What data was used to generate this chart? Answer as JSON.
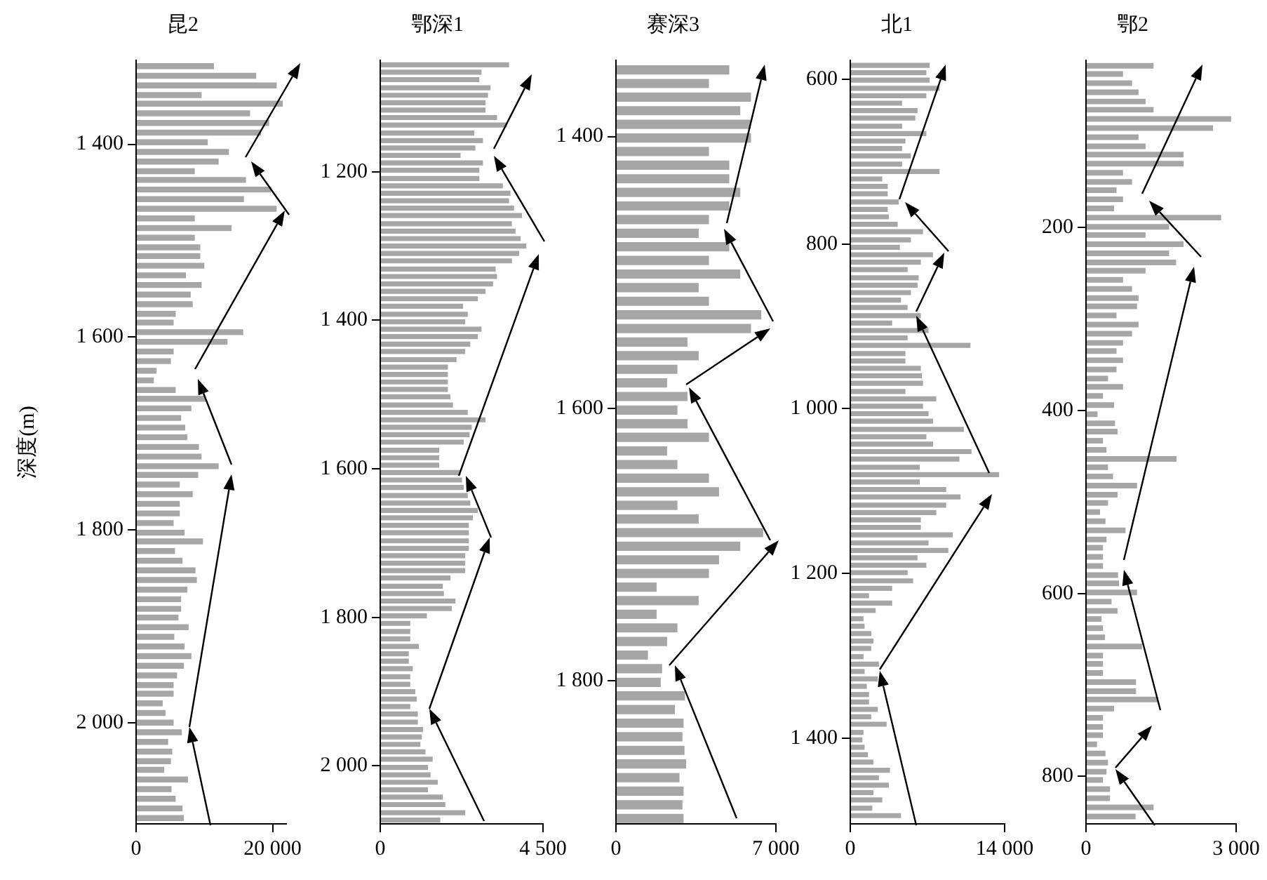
{
  "chart_data": [
    {
      "type": "bar",
      "orientation": "horizontal",
      "title": "昆2",
      "ylabel": "深度(m)",
      "color": "#a6a6a6",
      "xlim": [
        0,
        22000
      ],
      "xticks": [
        {
          "value": 0,
          "label": "0"
        },
        {
          "value": 20000,
          "label": "20 000"
        }
      ],
      "ylim": [
        2105,
        1313
      ],
      "yticks": [
        {
          "value": 1400,
          "label": "1 400"
        },
        {
          "value": 1600,
          "label": "1 600"
        },
        {
          "value": 1800,
          "label": "1 800"
        },
        {
          "value": 2000,
          "label": "2 000"
        }
      ],
      "x": [
        1319,
        1329,
        1339,
        1349,
        1358,
        1368,
        1378,
        1388,
        1398,
        1408,
        1418,
        1428,
        1437,
        1447,
        1457,
        1467,
        1477,
        1487,
        1497,
        1507,
        1516,
        1526,
        1536,
        1546,
        1556,
        1566,
        1576,
        1585,
        1595,
        1605,
        1615,
        1625,
        1635,
        1645,
        1655,
        1664,
        1674,
        1684,
        1694,
        1704,
        1714,
        1724,
        1734,
        1743,
        1753,
        1763,
        1773,
        1783,
        1793,
        1803,
        1812,
        1822,
        1832,
        1842,
        1852,
        1862,
        1872,
        1882,
        1891,
        1901,
        1911,
        1921,
        1931,
        1941,
        1951,
        1961,
        1970,
        1980,
        1990,
        2000,
        2010,
        2020,
        2030,
        2040,
        2049,
        2059,
        2069,
        2079,
        2089,
        2099
      ],
      "values": [
        11400,
        17600,
        20600,
        9600,
        21500,
        16700,
        19500,
        18300,
        10500,
        13600,
        12100,
        8600,
        16100,
        19800,
        15800,
        20600,
        8600,
        14000,
        8600,
        9400,
        9400,
        10000,
        7300,
        9600,
        8000,
        8300,
        5800,
        5500,
        15700,
        13400,
        5500,
        5100,
        3000,
        2600,
        5800,
        10200,
        8100,
        6600,
        7200,
        7500,
        9200,
        9600,
        12100,
        9100,
        6400,
        8300,
        6400,
        6400,
        5500,
        7100,
        9800,
        5700,
        6800,
        8700,
        8900,
        7500,
        6600,
        6600,
        6200,
        7700,
        5600,
        7100,
        8100,
        7000,
        6000,
        5500,
        5500,
        3900,
        4300,
        5500,
        6700,
        4700,
        5300,
        5100,
        4100,
        7600,
        5200,
        5800,
        6800,
        7000
      ]
    },
    {
      "type": "bar",
      "orientation": "horizontal",
      "title": "鄂深1",
      "color": "#a6a6a6",
      "xlim": [
        0,
        4500
      ],
      "xticks": [
        {
          "value": 0,
          "label": "0"
        },
        {
          "value": 4500,
          "label": "4 500"
        }
      ],
      "ylim": [
        2078,
        1050
      ],
      "yticks": [
        {
          "value": 1200,
          "label": "1 200"
        },
        {
          "value": 1400,
          "label": "1 400"
        },
        {
          "value": 1600,
          "label": "1 600"
        },
        {
          "value": 1800,
          "label": "1 800"
        },
        {
          "value": 2000,
          "label": "2 000"
        }
      ],
      "x": [
        1056,
        1066,
        1076,
        1087,
        1097,
        1107,
        1117,
        1127,
        1137,
        1148,
        1158,
        1168,
        1178,
        1188,
        1198,
        1209,
        1219,
        1229,
        1239,
        1249,
        1259,
        1270,
        1280,
        1290,
        1300,
        1310,
        1320,
        1331,
        1341,
        1351,
        1361,
        1371,
        1381,
        1392,
        1402,
        1412,
        1422,
        1432,
        1442,
        1453,
        1463,
        1473,
        1483,
        1493,
        1503,
        1514,
        1524,
        1534,
        1544,
        1554,
        1564,
        1575,
        1585,
        1595,
        1605,
        1615,
        1625,
        1636,
        1646,
        1656,
        1666,
        1676,
        1686,
        1697,
        1707,
        1717,
        1727,
        1737,
        1747,
        1758,
        1768,
        1778,
        1788,
        1798,
        1808,
        1819,
        1829,
        1839,
        1849,
        1859,
        1869,
        1880,
        1890,
        1900,
        1910,
        1920,
        1930,
        1941,
        1951,
        1961,
        1971,
        1981,
        1991,
        2002,
        2012,
        2022,
        2032,
        2042,
        2052,
        2063,
        2073
      ],
      "values": [
        3560,
        2800,
        2740,
        3050,
        2980,
        2910,
        2910,
        3230,
        3500,
        2600,
        2840,
        2630,
        2220,
        2840,
        2740,
        2740,
        3390,
        3600,
        3560,
        3700,
        3920,
        3640,
        3740,
        3880,
        4040,
        3840,
        3640,
        3190,
        3230,
        3120,
        2910,
        2700,
        2290,
        2420,
        2350,
        2800,
        2700,
        2490,
        2350,
        2110,
        1870,
        1870,
        1870,
        1870,
        1940,
        2010,
        2420,
        2910,
        2530,
        2470,
        2310,
        1630,
        1630,
        1630,
        2220,
        2260,
        2310,
        2420,
        2490,
        2700,
        2560,
        2450,
        2450,
        2450,
        2450,
        2350,
        2350,
        2350,
        1940,
        1730,
        1760,
        2080,
        1980,
        1290,
        830,
        830,
        830,
        1070,
        790,
        790,
        900,
        830,
        830,
        970,
        1010,
        830,
        1040,
        1040,
        1180,
        1150,
        1110,
        1250,
        1450,
        1320,
        1390,
        1590,
        1320,
        1730,
        1800,
        2350,
        1660
      ]
    },
    {
      "type": "bar",
      "orientation": "horizontal",
      "title": "赛深3",
      "color": "#a6a6a6",
      "xlim": [
        0,
        7000
      ],
      "xticks": [
        {
          "value": 0,
          "label": "0"
        },
        {
          "value": 7000,
          "label": "7 000"
        }
      ],
      "ylim": [
        1905,
        1344
      ],
      "yticks": [
        {
          "value": 1400,
          "label": "1 400"
        },
        {
          "value": 1600,
          "label": "1 600"
        },
        {
          "value": 1800,
          "label": "1 800"
        }
      ],
      "x": [
        1351,
        1361,
        1371,
        1381,
        1391,
        1401,
        1411,
        1421,
        1431,
        1441,
        1451,
        1461,
        1471,
        1481,
        1491,
        1501,
        1511,
        1521,
        1531,
        1541,
        1551,
        1561,
        1571,
        1581,
        1591,
        1601,
        1611,
        1621,
        1631,
        1641,
        1651,
        1661,
        1671,
        1681,
        1691,
        1701,
        1711,
        1721,
        1731,
        1741,
        1751,
        1761,
        1771,
        1781,
        1791,
        1801,
        1811,
        1821,
        1831,
        1841,
        1851,
        1861,
        1871,
        1881,
        1891,
        1901
      ],
      "values": [
        4960,
        4070,
        5910,
        5440,
        5890,
        5910,
        4070,
        4960,
        4960,
        5440,
        4960,
        4070,
        3620,
        4960,
        4070,
        5440,
        3620,
        4070,
        6360,
        5910,
        3130,
        3620,
        2690,
        2240,
        3130,
        2690,
        3130,
        4070,
        2240,
        2690,
        4070,
        4510,
        2690,
        3620,
        6440,
        5440,
        4510,
        4070,
        1780,
        3620,
        1780,
        2690,
        2240,
        1400,
        2020,
        1960,
        3020,
        2580,
        2960,
        2910,
        3000,
        3070,
        2780,
        2960,
        2910,
        2960
      ]
    },
    {
      "type": "bar",
      "orientation": "horizontal",
      "title": "北1",
      "color": "#a6a6a6",
      "xlim": [
        0,
        14000
      ],
      "xticks": [
        {
          "value": 0,
          "label": "0"
        },
        {
          "value": 14000,
          "label": "14 000"
        }
      ],
      "ylim": [
        1504,
        577
      ],
      "yticks": [
        600,
        800,
        {
          "value": 1000,
          "label": "1 000"
        },
        {
          "value": 1200,
          "label": "1 200"
        },
        {
          "value": 1400,
          "label": "1 400"
        }
      ],
      "x": [
        583,
        592,
        601,
        611,
        620,
        629,
        638,
        647,
        657,
        666,
        675,
        684,
        693,
        703,
        712,
        721,
        730,
        739,
        749,
        758,
        767,
        776,
        785,
        795,
        804,
        813,
        822,
        831,
        841,
        850,
        859,
        868,
        877,
        887,
        896,
        905,
        914,
        923,
        933,
        942,
        951,
        960,
        969,
        979,
        988,
        997,
        1006,
        1015,
        1025,
        1034,
        1043,
        1052,
        1061,
        1071,
        1080,
        1089,
        1098,
        1107,
        1117,
        1126,
        1135,
        1144,
        1153,
        1163,
        1172,
        1181,
        1190,
        1199,
        1209,
        1218,
        1227,
        1236,
        1245,
        1255,
        1264,
        1273,
        1282,
        1291,
        1301,
        1310,
        1319,
        1328,
        1337,
        1347,
        1356,
        1365,
        1374,
        1383,
        1393,
        1402,
        1411,
        1420,
        1429,
        1439,
        1448,
        1457,
        1466,
        1475,
        1485,
        1494
      ],
      "values": [
        7200,
        6900,
        7200,
        8100,
        6900,
        4700,
        6100,
        5900,
        4700,
        6900,
        5000,
        4700,
        5500,
        4700,
        8100,
        2900,
        3400,
        3400,
        4400,
        3400,
        3500,
        4300,
        6600,
        5500,
        4500,
        7500,
        6400,
        5200,
        6200,
        6100,
        5500,
        4600,
        5200,
        6400,
        3800,
        7100,
        5200,
        10900,
        5000,
        5000,
        6400,
        6500,
        6600,
        5000,
        7800,
        6600,
        7100,
        7500,
        10300,
        6900,
        7500,
        11000,
        9900,
        6300,
        13500,
        6300,
        8700,
        10000,
        8700,
        7800,
        6400,
        6400,
        9300,
        7100,
        8900,
        6100,
        6900,
        5200,
        5700,
        3800,
        1700,
        3800,
        2300,
        1200,
        1300,
        1900,
        2100,
        1900,
        1200,
        2600,
        1300,
        2500,
        1500,
        1700,
        1700,
        2500,
        1900,
        3300,
        1200,
        1100,
        1300,
        1600,
        2100,
        3600,
        2600,
        3500,
        2100,
        2900,
        2000,
        4600
      ]
    },
    {
      "type": "bar",
      "orientation": "horizontal",
      "title": "鄂2",
      "color": "#a6a6a6",
      "xlim": [
        0,
        3000
      ],
      "xticks": [
        {
          "value": 0,
          "label": "0"
        },
        {
          "value": 3000,
          "label": "3 000"
        }
      ],
      "ylim": [
        852,
        17
      ],
      "yticks": [
        200,
        400,
        600,
        800
      ],
      "x": [
        23,
        32,
        42,
        52,
        62,
        71,
        81,
        91,
        101,
        111,
        120,
        130,
        140,
        150,
        159,
        169,
        179,
        189,
        199,
        208,
        218,
        228,
        238,
        247,
        257,
        267,
        277,
        286,
        296,
        306,
        316,
        326,
        335,
        345,
        355,
        365,
        374,
        384,
        394,
        404,
        414,
        423,
        433,
        443,
        453,
        462,
        472,
        482,
        492,
        501,
        511,
        521,
        531,
        541,
        550,
        560,
        570,
        580,
        589,
        599,
        609,
        619,
        628,
        638,
        648,
        658,
        668,
        677,
        687,
        697,
        707,
        716,
        726,
        736,
        746,
        755,
        765,
        775,
        785,
        795,
        804,
        814,
        824,
        834,
        844
      ],
      "values": [
        1350,
        740,
        920,
        1050,
        1190,
        1350,
        2900,
        2540,
        1050,
        1190,
        1950,
        1950,
        740,
        920,
        610,
        740,
        560,
        2700,
        1660,
        1190,
        1950,
        1660,
        1800,
        1190,
        740,
        920,
        1050,
        1020,
        610,
        1050,
        920,
        740,
        610,
        740,
        610,
        440,
        740,
        340,
        560,
        230,
        580,
        630,
        340,
        410,
        1810,
        440,
        540,
        1020,
        630,
        440,
        280,
        390,
        790,
        410,
        340,
        340,
        340,
        640,
        660,
        1020,
        510,
        630,
        310,
        340,
        380,
        1120,
        340,
        340,
        340,
        1000,
        1000,
        1440,
        560,
        340,
        340,
        340,
        220,
        390,
        440,
        410,
        340,
        480,
        480,
        1350,
        990
      ]
    }
  ]
}
